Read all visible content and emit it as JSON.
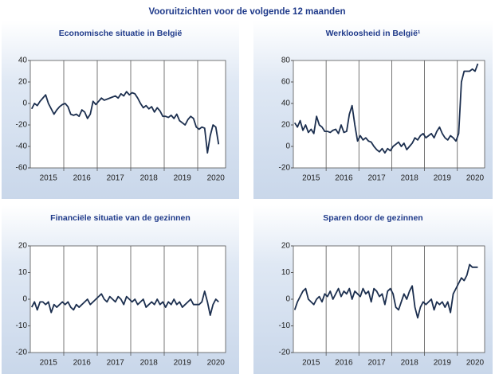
{
  "title": "Vooruitzichten voor de volgende 12 maanden",
  "chart_data": [
    {
      "type": "line",
      "title": "Economische situatie in België",
      "color": "#1c2f4f",
      "categories": [
        null,
        null,
        null,
        null,
        null,
        null,
        "2015",
        null,
        null,
        null,
        null,
        null,
        null,
        null,
        null,
        null,
        null,
        null,
        "2016",
        null,
        null,
        null,
        null,
        null,
        null,
        null,
        null,
        null,
        null,
        null,
        "2017",
        null,
        null,
        null,
        null,
        null,
        null,
        null,
        null,
        null,
        null,
        null,
        "2018",
        null,
        null,
        null,
        null,
        null,
        null,
        null,
        null,
        null,
        null,
        null,
        "2019",
        null,
        null,
        null,
        null,
        null,
        null,
        null,
        null,
        null,
        null,
        null,
        "2020",
        null
      ],
      "values": [
        -5,
        0,
        -2,
        2,
        5,
        8,
        0,
        -5,
        -10,
        -6,
        -3,
        -1,
        0,
        -3,
        -10,
        -11,
        -10,
        -12,
        -6,
        -8,
        -14,
        -10,
        2,
        -1,
        2,
        5,
        3,
        4,
        5,
        6,
        7,
        5,
        9,
        7,
        11,
        8,
        10,
        9,
        5,
        0,
        -4,
        -2,
        -5,
        -3,
        -8,
        -4,
        -7,
        -12,
        -12,
        -13,
        -11,
        -14,
        -10,
        -16,
        -18,
        -20,
        -15,
        -12,
        -14,
        -22,
        -24,
        -22,
        -23,
        -46,
        -30,
        -20,
        -22,
        -38
      ],
      "ylim": [
        -60,
        40
      ],
      "yticks": [
        -60,
        -40,
        -20,
        0,
        20,
        40
      ]
    },
    {
      "type": "line",
      "title": "Werkloosheid in België¹",
      "color": "#1c2f4f",
      "categories": [
        null,
        null,
        null,
        null,
        null,
        null,
        "2015",
        null,
        null,
        null,
        null,
        null,
        null,
        null,
        null,
        null,
        null,
        null,
        "2016",
        null,
        null,
        null,
        null,
        null,
        null,
        null,
        null,
        null,
        null,
        null,
        "2017",
        null,
        null,
        null,
        null,
        null,
        null,
        null,
        null,
        null,
        null,
        null,
        "2018",
        null,
        null,
        null,
        null,
        null,
        null,
        null,
        null,
        null,
        null,
        null,
        "2019",
        null,
        null,
        null,
        null,
        null,
        null,
        null,
        null,
        null,
        null,
        null,
        "2020",
        null
      ],
      "values": [
        22,
        18,
        24,
        15,
        20,
        13,
        16,
        12,
        28,
        20,
        18,
        14,
        14,
        13,
        15,
        16,
        12,
        20,
        13,
        14,
        30,
        38,
        20,
        5,
        10,
        6,
        8,
        5,
        4,
        0,
        -3,
        -5,
        -2,
        -6,
        -2,
        -4,
        0,
        2,
        4,
        0,
        3,
        -3,
        0,
        3,
        8,
        6,
        10,
        12,
        8,
        10,
        12,
        8,
        14,
        18,
        12,
        8,
        6,
        10,
        8,
        5,
        12,
        60,
        70,
        70,
        70,
        72,
        70,
        77
      ],
      "ylim": [
        -20,
        80
      ],
      "yticks": [
        -20,
        0,
        20,
        40,
        60,
        80
      ]
    },
    {
      "type": "line",
      "title": "Financiële situatie van de gezinnen",
      "color": "#1c2f4f",
      "categories": [
        null,
        null,
        null,
        null,
        null,
        null,
        "2015",
        null,
        null,
        null,
        null,
        null,
        null,
        null,
        null,
        null,
        null,
        null,
        "2016",
        null,
        null,
        null,
        null,
        null,
        null,
        null,
        null,
        null,
        null,
        null,
        "2017",
        null,
        null,
        null,
        null,
        null,
        null,
        null,
        null,
        null,
        null,
        null,
        "2018",
        null,
        null,
        null,
        null,
        null,
        null,
        null,
        null,
        null,
        null,
        null,
        "2019",
        null,
        null,
        null,
        null,
        null,
        null,
        null,
        null,
        null,
        null,
        null,
        "2020",
        null
      ],
      "values": [
        -3,
        -1,
        -4,
        -1,
        -1,
        -2,
        -1,
        -5,
        -2,
        -3,
        -2,
        -1,
        -2,
        -1,
        -3,
        -4,
        -2,
        -3,
        -2,
        -1,
        0,
        -2,
        -1,
        0,
        1,
        2,
        0,
        -1,
        1,
        0,
        -1,
        1,
        0,
        -2,
        1,
        0,
        -1,
        0,
        -2,
        -1,
        0,
        -3,
        -2,
        -1,
        -2,
        0,
        -2,
        -1,
        -3,
        -1,
        -2,
        0,
        -2,
        -1,
        -3,
        -2,
        -1,
        0,
        -2,
        -2,
        -2,
        -1,
        3,
        -1,
        -6,
        -2,
        0,
        -1
      ],
      "ylim": [
        -20,
        20
      ],
      "yticks": [
        -20,
        -10,
        0,
        10,
        20
      ]
    },
    {
      "type": "line",
      "title": "Sparen door de gezinnen",
      "color": "#1c2f4f",
      "categories": [
        null,
        null,
        null,
        null,
        null,
        null,
        "2015",
        null,
        null,
        null,
        null,
        null,
        null,
        null,
        null,
        null,
        null,
        null,
        "2016",
        null,
        null,
        null,
        null,
        null,
        null,
        null,
        null,
        null,
        null,
        null,
        "2017",
        null,
        null,
        null,
        null,
        null,
        null,
        null,
        null,
        null,
        null,
        null,
        "2018",
        null,
        null,
        null,
        null,
        null,
        null,
        null,
        null,
        null,
        null,
        null,
        "2019",
        null,
        null,
        null,
        null,
        null,
        null,
        null,
        null,
        null,
        null,
        null,
        "2020",
        null
      ],
      "values": [
        -4,
        -1,
        1,
        3,
        4,
        0,
        -1,
        -2,
        0,
        1,
        -1,
        2,
        1,
        3,
        0,
        2,
        4,
        1,
        3,
        2,
        4,
        0,
        3,
        2,
        1,
        4,
        2,
        3,
        -1,
        4,
        3,
        1,
        2,
        -2,
        3,
        4,
        2,
        -3,
        -4,
        -1,
        2,
        0,
        3,
        5,
        -3,
        -7,
        -3,
        -1,
        -2,
        -1,
        0,
        -4,
        -1,
        -2,
        -1,
        -3,
        -1,
        -5,
        2,
        4,
        6,
        8,
        7,
        9,
        13,
        12,
        12,
        12
      ],
      "ylim": [
        -20,
        20
      ],
      "yticks": [
        -20,
        -10,
        0,
        10,
        20
      ]
    }
  ]
}
